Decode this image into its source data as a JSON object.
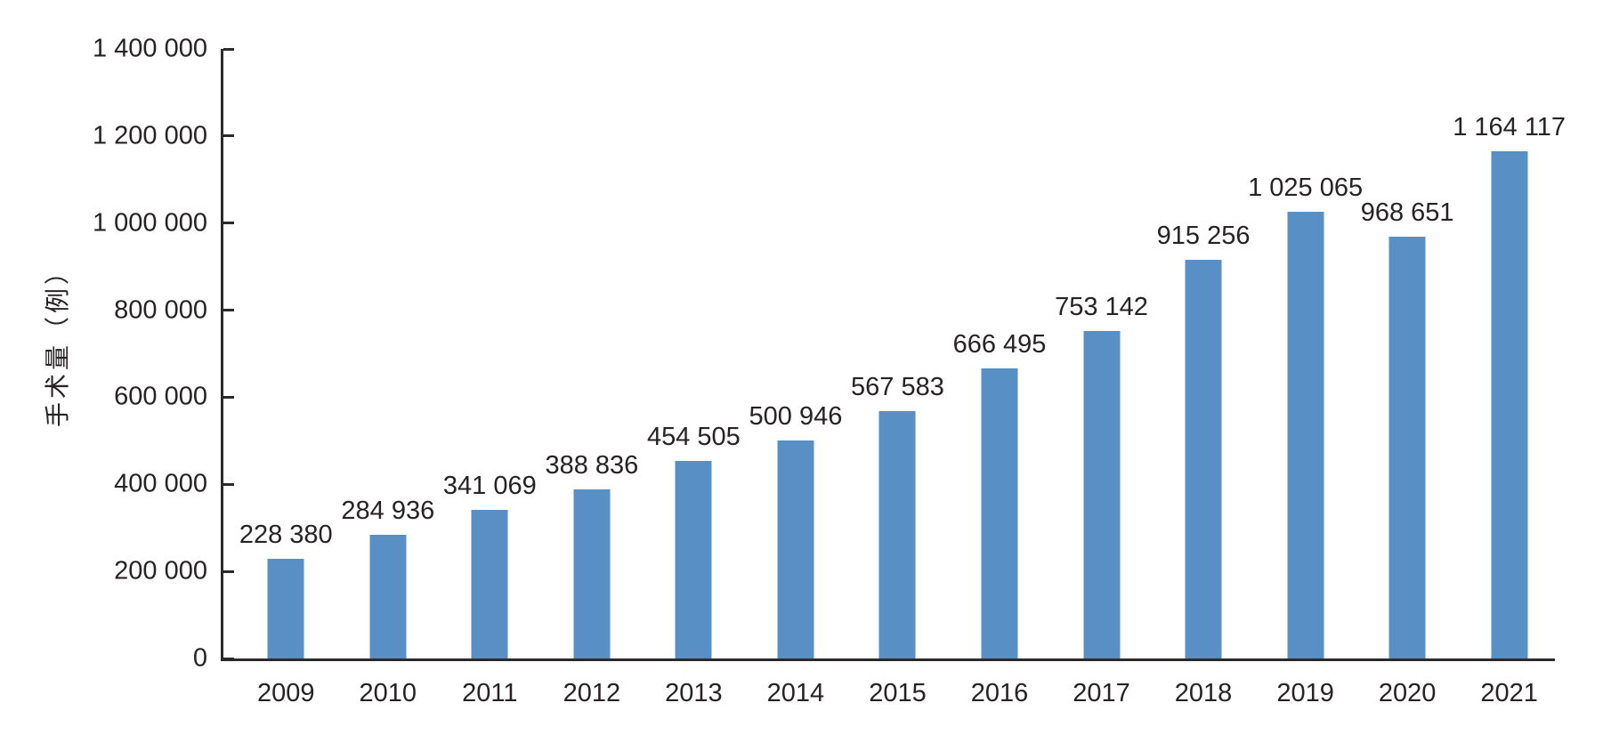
{
  "chart_data": {
    "type": "bar",
    "title": "",
    "xlabel": "",
    "ylabel": "手术量（例）",
    "categories": [
      "2009",
      "2010",
      "2011",
      "2012",
      "2013",
      "2014",
      "2015",
      "2016",
      "2017",
      "2018",
      "2019",
      "2020",
      "2021"
    ],
    "values": [
      228380,
      284936,
      341069,
      388836,
      454505,
      500946,
      567583,
      666495,
      753142,
      915256,
      1025065,
      968651,
      1164117
    ],
    "value_labels": [
      "228 380",
      "284 936",
      "341 069",
      "388 836",
      "454 505",
      "500 946",
      "567 583",
      "666 495",
      "753 142",
      "915 256",
      "1 025 065",
      "968 651",
      "1 164 117"
    ],
    "ylim": [
      0,
      1400000
    ],
    "y_ticks": [
      {
        "value": 0,
        "label": "0"
      },
      {
        "value": 200000,
        "label": "200 000"
      },
      {
        "value": 400000,
        "label": "400 000"
      },
      {
        "value": 600000,
        "label": "600 000"
      },
      {
        "value": 800000,
        "label": "800 000"
      },
      {
        "value": 1000000,
        "label": "1 000 000"
      },
      {
        "value": 1200000,
        "label": "1 200 000"
      },
      {
        "value": 1400000,
        "label": "1 400 000"
      }
    ],
    "grid": false,
    "legend": null,
    "colors": {
      "bar": "#5890c5",
      "axis": "#2d2a2b",
      "text": "#272324"
    }
  }
}
